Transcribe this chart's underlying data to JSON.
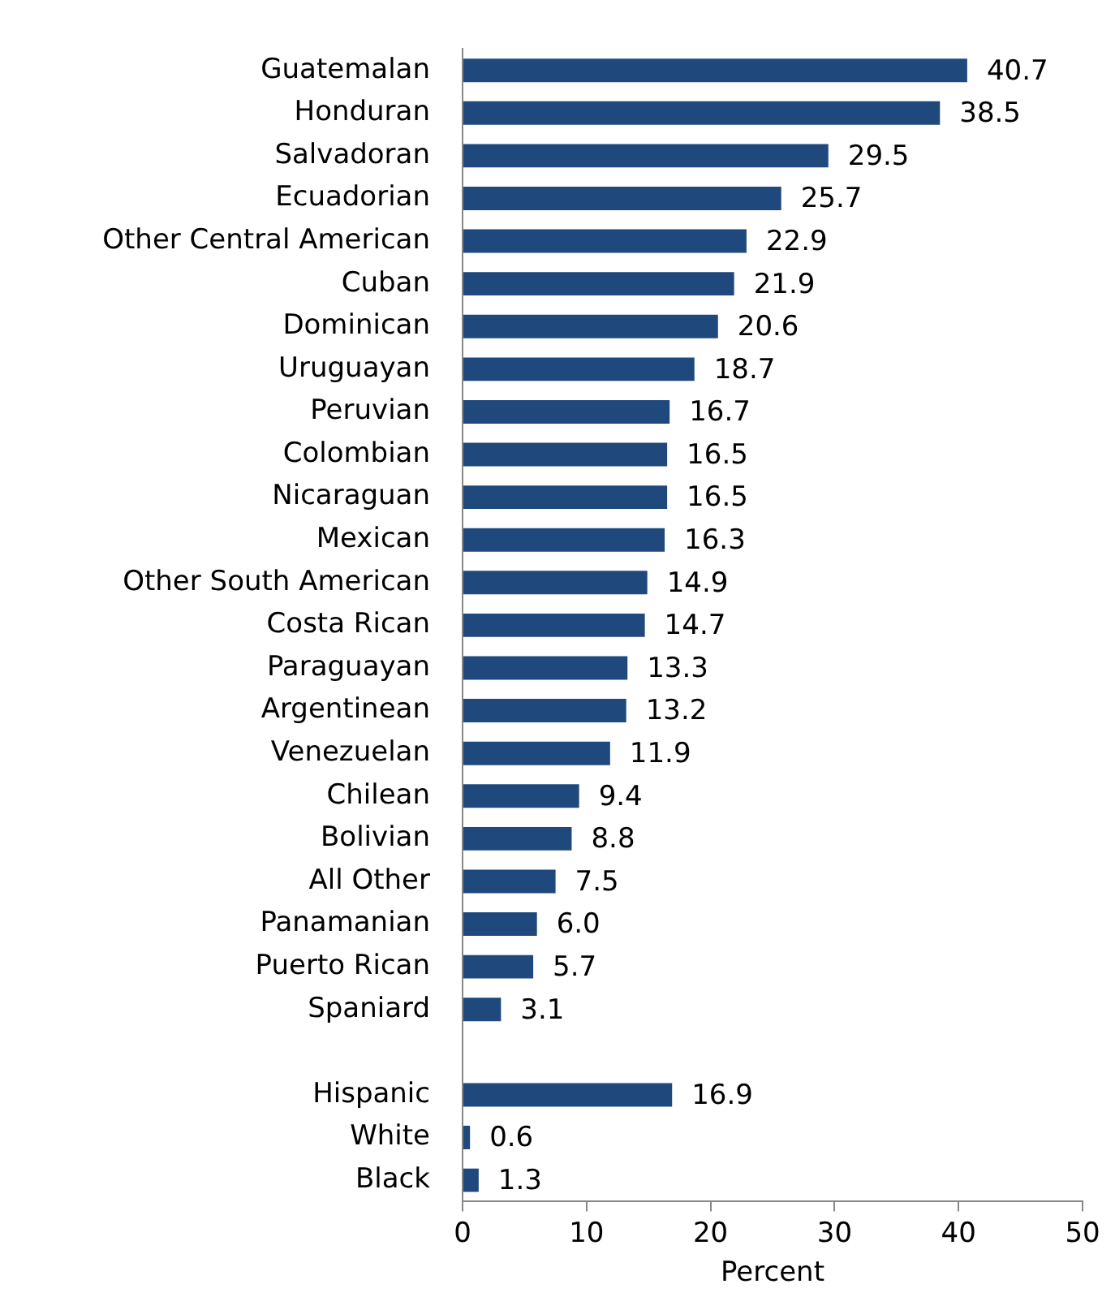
{
  "chart_data": {
    "type": "bar",
    "orientation": "horizontal",
    "xlabel": "Percent",
    "categories": [
      "Guatemalan",
      "Honduran",
      "Salvadoran",
      "Ecuadorian",
      "Other Central American",
      "Cuban",
      "Dominican",
      "Uruguayan",
      "Peruvian",
      "Colombian",
      "Nicaraguan",
      "Mexican",
      "Other South American",
      "Costa Rican",
      "Paraguayan",
      "Argentinean",
      "Venezuelan",
      "Chilean",
      "Bolivian",
      "All Other",
      "Panamanian",
      "Puerto Rican",
      "Spaniard",
      null,
      "Hispanic",
      "White",
      "Black"
    ],
    "values": [
      40.7,
      38.5,
      29.5,
      25.7,
      22.9,
      21.9,
      20.6,
      18.7,
      16.7,
      16.5,
      16.5,
      16.3,
      14.9,
      14.7,
      13.3,
      13.2,
      11.9,
      9.4,
      8.8,
      7.5,
      6.0,
      5.7,
      3.1,
      null,
      16.9,
      0.6,
      1.3
    ],
    "value_labels": [
      "40.7",
      "38.5",
      "29.5",
      "25.7",
      "22.9",
      "21.9",
      "20.6",
      "18.7",
      "16.7",
      "16.5",
      "16.5",
      "16.3",
      "14.9",
      "14.7",
      "13.3",
      "13.2",
      "11.9",
      "9.4",
      "8.8",
      "7.5",
      "6.0",
      "5.7",
      "3.1",
      null,
      "16.9",
      "0.6",
      "1.3"
    ],
    "color": "#1f497d",
    "xlim": [
      0,
      50
    ],
    "xticks": [
      0,
      10,
      20,
      30,
      40,
      50
    ],
    "grid": false
  }
}
